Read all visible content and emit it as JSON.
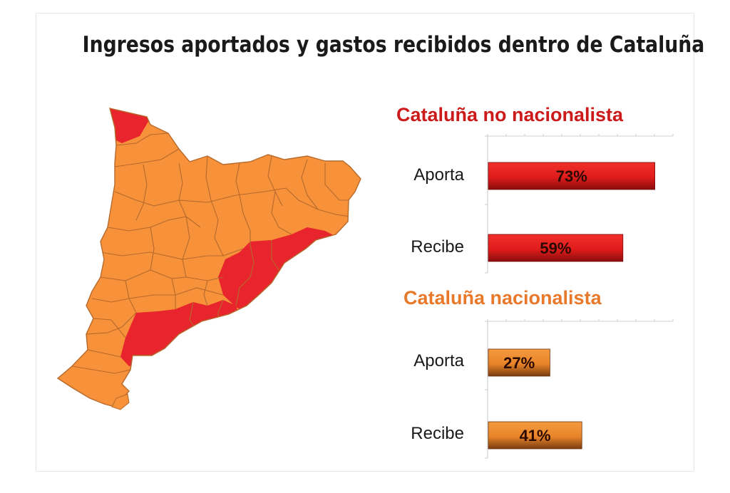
{
  "title": "Ingresos aportados y gastos recibidos dentro de Cataluña",
  "colors": {
    "red_region": "#e8252d",
    "orange_region": "#f7913a",
    "border": "#b56a2c",
    "red_title": "#cc1a1a",
    "orange_title": "#e8782a",
    "red_bar": "#e81c1c",
    "orange_bar": "#ee8a2a"
  },
  "chart_data": [
    {
      "type": "bar",
      "orientation": "horizontal",
      "title": "Cataluña no nacionalista",
      "categories": [
        "Aporta",
        "Recibe"
      ],
      "values": [
        73,
        59
      ],
      "value_labels": [
        "73%",
        "59%"
      ],
      "xlim": [
        0,
        100
      ],
      "color": "#e81c1c"
    },
    {
      "type": "bar",
      "orientation": "horizontal",
      "title": "Cataluña nacionalista",
      "categories": [
        "Aporta",
        "Recibe"
      ],
      "values": [
        27,
        41
      ],
      "value_labels": [
        "27%",
        "41%"
      ],
      "xlim": [
        0,
        100
      ],
      "color": "#ee8a2a"
    }
  ]
}
